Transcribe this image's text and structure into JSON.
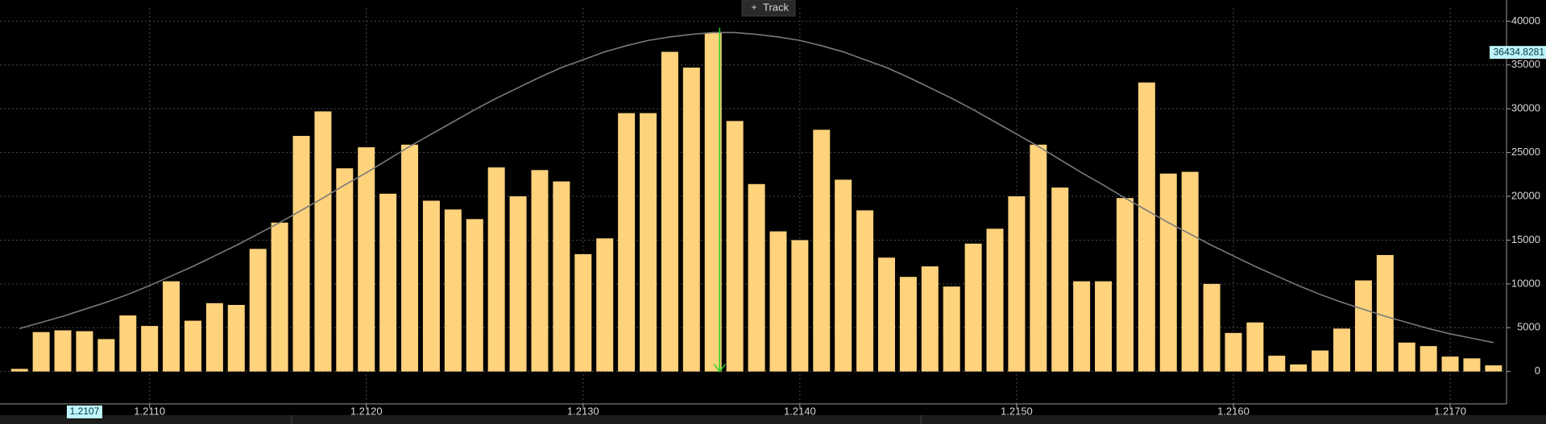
{
  "toolbar": {
    "button": "Track"
  },
  "chart_data": {
    "type": "bar",
    "x": [
      1.2104,
      1.2105,
      1.2106,
      1.2107,
      1.2108,
      1.2109,
      1.211,
      1.2111,
      1.2112,
      1.2113,
      1.2114,
      1.2115,
      1.2116,
      1.2117,
      1.2118,
      1.2119,
      1.212,
      1.2121,
      1.2122,
      1.2123,
      1.2124,
      1.2125,
      1.2126,
      1.2127,
      1.2128,
      1.2129,
      1.213,
      1.2131,
      1.2132,
      1.2133,
      1.2134,
      1.2135,
      1.2136,
      1.2137,
      1.2138,
      1.2139,
      1.214,
      1.2141,
      1.2142,
      1.2143,
      1.2144,
      1.2145,
      1.2146,
      1.2147,
      1.2148,
      1.2149,
      1.215,
      1.2151,
      1.2152,
      1.2153,
      1.2154,
      1.2155,
      1.2156,
      1.2157,
      1.2158,
      1.2159,
      1.216,
      1.2161,
      1.2162,
      1.2163,
      1.2164,
      1.2165,
      1.2166,
      1.2167,
      1.2168,
      1.2169,
      1.217,
      1.2171,
      1.2172
    ],
    "series": [
      {
        "type": "bar",
        "color": "#ffd27c",
        "values": [
          300,
          4500,
          4700,
          4600,
          3700,
          6400,
          5200,
          10300,
          5800,
          7800,
          7600,
          14000,
          17000,
          26900,
          29700,
          23200,
          25600,
          20300,
          25900,
          19500,
          18500,
          17400,
          23300,
          20000,
          23000,
          21700,
          13400,
          15200,
          29500,
          29500,
          36500,
          34700,
          38700,
          28600,
          21400,
          16000,
          15000,
          27600,
          21900,
          18400,
          13000,
          10800,
          12000,
          9700,
          14600,
          16300,
          20000,
          25900,
          21000,
          10300,
          10300,
          19800,
          33000,
          22600,
          22800,
          10000,
          4400,
          5600,
          1800,
          800,
          2400,
          4900,
          10400,
          13300,
          3300,
          2900,
          1700,
          1500,
          700
        ]
      },
      {
        "type": "line",
        "color": "#7a7a7a",
        "values": [
          4900,
          5600,
          6300,
          7100,
          7900,
          8800,
          9800,
          10900,
          12000,
          13200,
          14400,
          15700,
          17000,
          18400,
          19800,
          21300,
          22700,
          24200,
          25700,
          27100,
          28500,
          29900,
          31200,
          32400,
          33600,
          34700,
          35600,
          36500,
          37200,
          37800,
          38200,
          38500,
          38700,
          38700,
          38500,
          38200,
          37800,
          37200,
          36500,
          35600,
          34700,
          33600,
          32400,
          31200,
          29900,
          28500,
          27100,
          25700,
          24200,
          22700,
          21300,
          19800,
          18400,
          17000,
          15700,
          14400,
          13200,
          12000,
          10900,
          9800,
          8800,
          7900,
          7100,
          6300,
          5600,
          4900,
          4300,
          3800,
          3300
        ]
      }
    ],
    "xlim": [
      1.21031,
      1.21726
    ],
    "ylim": [
      -3700,
      41500
    ],
    "xticks": [
      {
        "value": 1.211,
        "label": "1.2110"
      },
      {
        "value": 1.212,
        "label": "1.2120"
      },
      {
        "value": 1.213,
        "label": "1.2130"
      },
      {
        "value": 1.214,
        "label": "1.2140"
      },
      {
        "value": 1.215,
        "label": "1.2150"
      },
      {
        "value": 1.216,
        "label": "1.2160"
      },
      {
        "value": 1.217,
        "label": "1.2170"
      }
    ],
    "yticks": [
      0,
      5000,
      10000,
      15000,
      20000,
      25000,
      30000,
      35000,
      40000
    ],
    "grid": true,
    "marker_x": 1.21363,
    "cursor_x": 1.2107,
    "cursor_y": 36434.8281
  }
}
